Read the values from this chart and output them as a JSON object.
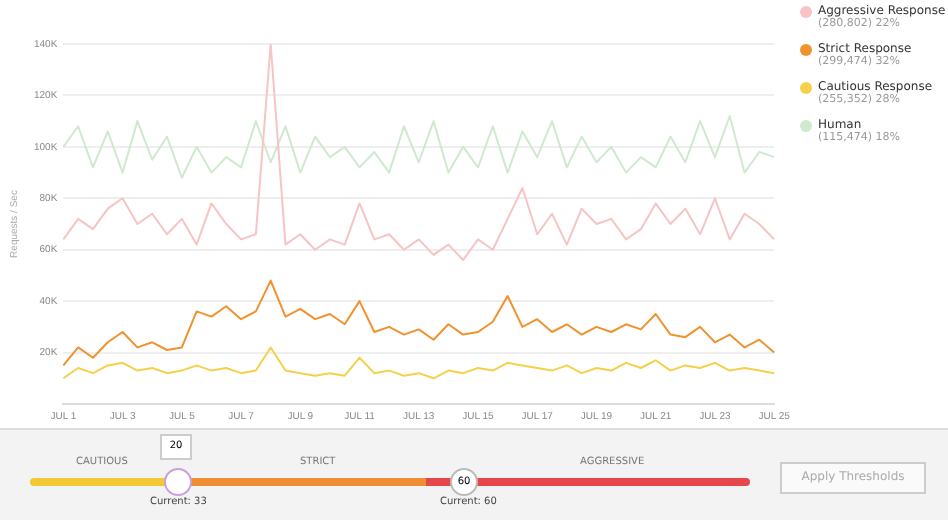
{
  "chart_data": {
    "type": "line",
    "ylabel": "Requests / Sec",
    "categories": [
      "JUL 1",
      null,
      null,
      null,
      "JUL 3",
      null,
      null,
      null,
      "JUL 5",
      null,
      null,
      null,
      "JUL 7",
      null,
      null,
      null,
      "JUL 9",
      null,
      null,
      null,
      "JUL 11",
      null,
      null,
      null,
      "JUL 13",
      null,
      null,
      null,
      "JUL 15",
      null,
      null,
      null,
      "JUL 17",
      null,
      null,
      null,
      "JUL 19",
      null,
      null,
      null,
      "JUL 21",
      null,
      null,
      null,
      "JUL 23",
      null,
      null,
      null,
      "JUL 25"
    ],
    "series": [
      {
        "name": "Aggressive Response",
        "color": "#f6c4c4",
        "values": [
          64000,
          72000,
          68000,
          76000,
          80000,
          70000,
          74000,
          66000,
          72000,
          62000,
          78000,
          70000,
          64000,
          66000,
          140000,
          62000,
          66000,
          60000,
          64000,
          62000,
          78000,
          64000,
          66000,
          60000,
          64000,
          58000,
          62000,
          56000,
          64000,
          60000,
          72000,
          84000,
          66000,
          74000,
          62000,
          76000,
          70000,
          72000,
          64000,
          68000,
          78000,
          70000,
          76000,
          66000,
          80000,
          64000,
          74000,
          70000,
          64000
        ]
      },
      {
        "name": "Strict Response",
        "color": "#f0922e",
        "values": [
          15000,
          22000,
          18000,
          24000,
          28000,
          22000,
          24000,
          21000,
          22000,
          36000,
          34000,
          38000,
          33000,
          36000,
          48000,
          34000,
          37000,
          33000,
          35000,
          31000,
          40000,
          28000,
          30000,
          27000,
          29000,
          25000,
          31000,
          27000,
          28000,
          32000,
          42000,
          30000,
          33000,
          28000,
          31000,
          27000,
          30000,
          28000,
          31000,
          29000,
          35000,
          27000,
          26000,
          30000,
          24000,
          27000,
          22000,
          25000,
          20000
        ]
      },
      {
        "name": "Cautious Response",
        "color": "#f5d04a",
        "values": [
          10000,
          14000,
          12000,
          15000,
          16000,
          13000,
          14000,
          12000,
          13000,
          15000,
          13000,
          14000,
          12000,
          13000,
          22000,
          13000,
          12000,
          11000,
          12000,
          11000,
          18000,
          12000,
          13000,
          11000,
          12000,
          10000,
          13000,
          12000,
          14000,
          13000,
          16000,
          15000,
          14000,
          13000,
          15000,
          12000,
          14000,
          13000,
          16000,
          14000,
          17000,
          13000,
          15000,
          14000,
          16000,
          13000,
          14000,
          13000,
          12000
        ]
      },
      {
        "name": "Human",
        "color": "#cfe9cf",
        "values": [
          100000,
          108000,
          92000,
          106000,
          90000,
          110000,
          95000,
          104000,
          88000,
          100000,
          90000,
          96000,
          92000,
          110000,
          94000,
          108000,
          90000,
          104000,
          96000,
          100000,
          92000,
          98000,
          90000,
          108000,
          94000,
          110000,
          90000,
          100000,
          92000,
          108000,
          90000,
          106000,
          96000,
          110000,
          92000,
          104000,
          94000,
          100000,
          90000,
          96000,
          92000,
          104000,
          94000,
          110000,
          96000,
          112000,
          90000,
          98000,
          96000
        ]
      }
    ],
    "ylim": [
      0,
      140000
    ],
    "yticks": [
      {
        "value": 20000,
        "label": "20K"
      },
      {
        "value": 40000,
        "label": "40K"
      },
      {
        "value": 60000,
        "label": "60K"
      },
      {
        "value": 80000,
        "label": "80K"
      },
      {
        "value": 100000,
        "label": "100K"
      },
      {
        "value": 120000,
        "label": "120K"
      },
      {
        "value": 140000,
        "label": "140K"
      }
    ],
    "grid": "y",
    "legend": "right",
    "marker": "none",
    "line_style": "solid",
    "annotations": [
      "(280,802) 22%",
      "(299,474) 32%",
      "(255,352) 28%",
      "(115,474) 18%",
      "CAUTIOUS",
      "STRICT",
      "AGGRESSIVE",
      "20",
      "60",
      "Current: 33",
      "Current: 60",
      "Apply Thresholds"
    ]
  }
}
